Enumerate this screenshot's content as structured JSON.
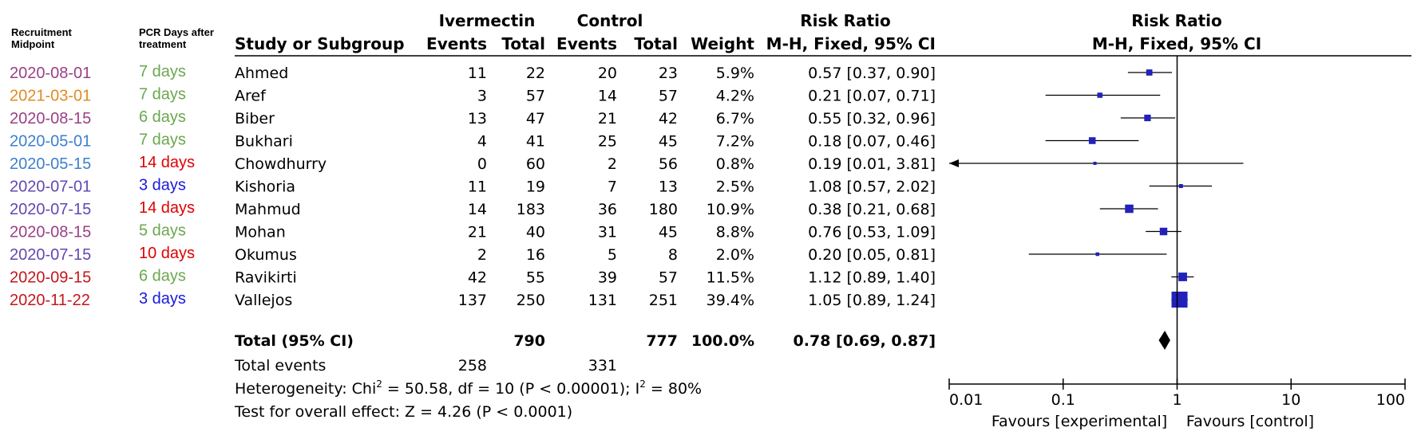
{
  "header": {
    "recruitment": [
      "Recruitment",
      "Midpoint"
    ],
    "pcr": [
      "PCR Days after",
      "treatment"
    ],
    "study": "Study or Subgroup",
    "ivermectin": "Ivermectin",
    "control": "Control",
    "events": "Events",
    "total": "Total",
    "weight": "Weight",
    "rr_title": "Risk Ratio",
    "rr_method": "M-H, Fixed, 95% CI"
  },
  "footer": {
    "total_label": "Total (95% CI)",
    "iv_total": "790",
    "ctl_total": "777",
    "weight_total": "100.0%",
    "rr_total": "0.78 [0.69, 0.87]",
    "events_label": "Total events",
    "iv_events": "258",
    "ctl_events": "331",
    "heterogeneity": {
      "prefix": "Heterogeneity: Chi",
      "sup1": "2",
      "mid": " = 50.58, df = 10 (P < 0.00001); I",
      "sup2": "2",
      "suffix": " = 80%"
    },
    "overall_effect": "Test for overall effect: Z = 4.26 (P < 0.0001)"
  },
  "axis": {
    "tick_labels": [
      "0.01",
      "0.1",
      "1",
      "10",
      "100"
    ],
    "favours_left": "Favours [experimental]",
    "favours_right": "Favours [control]"
  },
  "colors": {
    "marker": "#2222bb",
    "dates": {
      "2020-08-01": "#9b3f86",
      "2021-03-01": "#e08b22",
      "2020-08-15": "#9b3f86",
      "2020-05-01": "#3d7fcf",
      "2020-05-15": "#3d7fcf",
      "2020-07-01": "#6347b5",
      "2020-07-15": "#6347b5",
      "2020-09-15": "#c4161c",
      "2020-11-22": "#c4161c"
    },
    "days": {
      "green": "#6aa84f",
      "red": "#e00000",
      "blue": "#1a1adc"
    }
  },
  "chart_data": {
    "type": "forest",
    "scale": "log",
    "xlim": [
      0.01,
      100
    ],
    "ticks": [
      0.01,
      0.1,
      1,
      10,
      100
    ],
    "reference_line": 1,
    "studies": [
      {
        "midpoint": "2020-08-01",
        "midpoint_color": "#9b3f86",
        "days": "7 days",
        "days_color": "#6aa84f",
        "study": "Ahmed",
        "iv_events": 11,
        "iv_total": 22,
        "ctl_events": 20,
        "ctl_total": 23,
        "weight": "5.9%",
        "rr_text": "0.57 [0.37, 0.90]",
        "rr": 0.57,
        "lo": 0.37,
        "hi": 0.9,
        "w": 5.9
      },
      {
        "midpoint": "2021-03-01",
        "midpoint_color": "#e08b22",
        "days": "7 days",
        "days_color": "#6aa84f",
        "study": "Aref",
        "iv_events": 3,
        "iv_total": 57,
        "ctl_events": 14,
        "ctl_total": 57,
        "weight": "4.2%",
        "rr_text": "0.21 [0.07, 0.71]",
        "rr": 0.21,
        "lo": 0.07,
        "hi": 0.71,
        "w": 4.2
      },
      {
        "midpoint": "2020-08-15",
        "midpoint_color": "#9b3f86",
        "days": "6 days",
        "days_color": "#6aa84f",
        "study": "Biber",
        "iv_events": 13,
        "iv_total": 47,
        "ctl_events": 21,
        "ctl_total": 42,
        "weight": "6.7%",
        "rr_text": "0.55 [0.32, 0.96]",
        "rr": 0.55,
        "lo": 0.32,
        "hi": 0.96,
        "w": 6.7
      },
      {
        "midpoint": "2020-05-01",
        "midpoint_color": "#3d7fcf",
        "days": "7 days",
        "days_color": "#6aa84f",
        "study": "Bukhari",
        "iv_events": 4,
        "iv_total": 41,
        "ctl_events": 25,
        "ctl_total": 45,
        "weight": "7.2%",
        "rr_text": "0.18 [0.07, 0.46]",
        "rr": 0.18,
        "lo": 0.07,
        "hi": 0.46,
        "w": 7.2
      },
      {
        "midpoint": "2020-05-15",
        "midpoint_color": "#3d7fcf",
        "days": "14 days",
        "days_color": "#e00000",
        "study": "Chowdhurry",
        "iv_events": 0,
        "iv_total": 60,
        "ctl_events": 2,
        "ctl_total": 56,
        "weight": "0.8%",
        "rr_text": "0.19 [0.01, 3.81]",
        "rr": 0.19,
        "lo": 0.01,
        "hi": 3.81,
        "w": 0.8
      },
      {
        "midpoint": "2020-07-01",
        "midpoint_color": "#6347b5",
        "days": "3 days",
        "days_color": "#1a1adc",
        "study": "Kishoria",
        "iv_events": 11,
        "iv_total": 19,
        "ctl_events": 7,
        "ctl_total": 13,
        "weight": "2.5%",
        "rr_text": "1.08 [0.57, 2.02]",
        "rr": 1.08,
        "lo": 0.57,
        "hi": 2.02,
        "w": 2.5
      },
      {
        "midpoint": "2020-07-15",
        "midpoint_color": "#6347b5",
        "days": "14 days",
        "days_color": "#e00000",
        "study": "Mahmud",
        "iv_events": 14,
        "iv_total": 183,
        "ctl_events": 36,
        "ctl_total": 180,
        "weight": "10.9%",
        "rr_text": "0.38 [0.21, 0.68]",
        "rr": 0.38,
        "lo": 0.21,
        "hi": 0.68,
        "w": 10.9
      },
      {
        "midpoint": "2020-08-15",
        "midpoint_color": "#9b3f86",
        "days": "5 days",
        "days_color": "#6aa84f",
        "study": "Mohan",
        "iv_events": 21,
        "iv_total": 40,
        "ctl_events": 31,
        "ctl_total": 45,
        "weight": "8.8%",
        "rr_text": "0.76 [0.53, 1.09]",
        "rr": 0.76,
        "lo": 0.53,
        "hi": 1.09,
        "w": 8.8
      },
      {
        "midpoint": "2020-07-15",
        "midpoint_color": "#6347b5",
        "days": "10 days",
        "days_color": "#e00000",
        "study": "Okumus",
        "iv_events": 2,
        "iv_total": 16,
        "ctl_events": 5,
        "ctl_total": 8,
        "weight": "2.0%",
        "rr_text": "0.20 [0.05, 0.81]",
        "rr": 0.2,
        "lo": 0.05,
        "hi": 0.81,
        "w": 2.0
      },
      {
        "midpoint": "2020-09-15",
        "midpoint_color": "#c4161c",
        "days": "6 days",
        "days_color": "#6aa84f",
        "study": "Ravikirti",
        "iv_events": 42,
        "iv_total": 55,
        "ctl_events": 39,
        "ctl_total": 57,
        "weight": "11.5%",
        "rr_text": "1.12 [0.89, 1.40]",
        "rr": 1.12,
        "lo": 0.89,
        "hi": 1.4,
        "w": 11.5
      },
      {
        "midpoint": "2020-11-22",
        "midpoint_color": "#c4161c",
        "days": "3 days",
        "days_color": "#1a1adc",
        "study": "Vallejos",
        "iv_events": 137,
        "iv_total": 250,
        "ctl_events": 131,
        "ctl_total": 251,
        "weight": "39.4%",
        "rr_text": "1.05 [0.89, 1.24]",
        "rr": 1.05,
        "lo": 0.89,
        "hi": 1.24,
        "w": 39.4
      }
    ],
    "pooled": {
      "rr": 0.78,
      "lo": 0.69,
      "hi": 0.87
    }
  }
}
